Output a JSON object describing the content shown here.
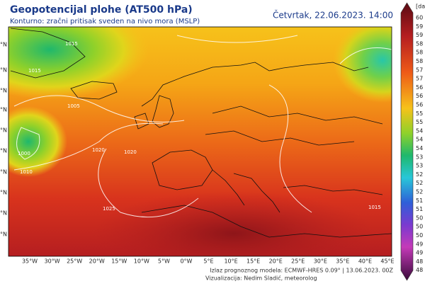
{
  "header": {
    "title": "Geopotencijal plohe (AT500 hPa)",
    "subtitle": "Konturno: zračni pritisak sveden na nivo mora (MSLP)",
    "date": "Četvrtak, 22.06.2023. 14:00"
  },
  "colorbar": {
    "unit": "[da",
    "labels": [
      "60",
      "59",
      "59",
      "58",
      "58",
      "58",
      "57",
      "57",
      "56",
      "56",
      "56",
      "55",
      "55",
      "54",
      "54",
      "54",
      "53",
      "53",
      "52",
      "52",
      "52",
      "51",
      "51",
      "50",
      "50",
      "50",
      "49",
      "49",
      "48",
      "48"
    ]
  },
  "longitudes": [
    "35°W",
    "30°W",
    "25°W",
    "20°W",
    "15°W",
    "10°W",
    "5°W",
    "0°W",
    "5°E",
    "10°E",
    "15°E",
    "20°E",
    "25°E",
    "30°E",
    "35°E",
    "40°E",
    "45°E"
  ],
  "latitudes": [
    "°N",
    "°N",
    "°N",
    "°N",
    "°N",
    "°N",
    "°N",
    "°N",
    "°N",
    "°N"
  ],
  "isobar_labels": [
    "1015",
    "1015",
    "1020",
    "1005",
    "1000",
    "1010",
    "1020",
    "1025",
    "1015"
  ],
  "footer": {
    "model": "Izlaz prognoznog modela: ECMWF-HRES 0.09° | 13.06.2023. 00Z",
    "credit": "Vizualizacija: Nedim Sladić, meteorolog"
  }
}
